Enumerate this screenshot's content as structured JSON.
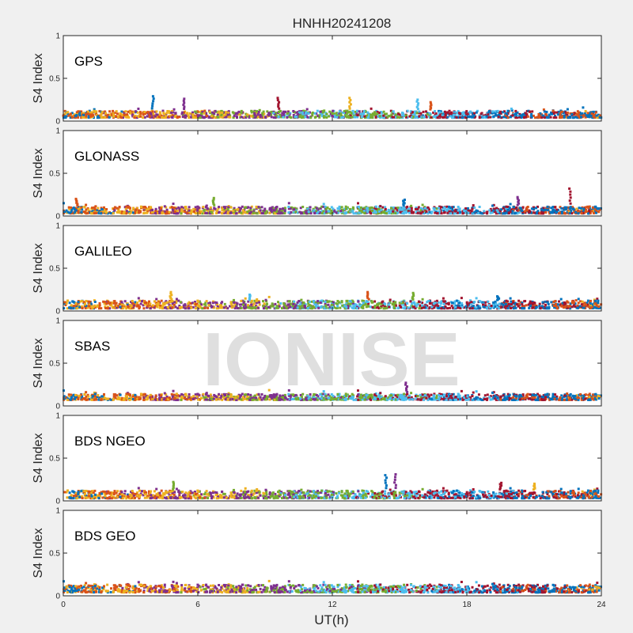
{
  "figure": {
    "title": "HNHH20241208",
    "xlabel": "UT(h)",
    "watermark": "IONISE"
  },
  "chart_data": [
    {
      "type": "scatter",
      "panel_label": "GPS",
      "ylabel": "S4 Index",
      "xlim": [
        0,
        24
      ],
      "ylim": [
        0,
        1
      ],
      "yticks": [
        "0",
        "0.5",
        "1"
      ],
      "baseline_range": [
        0.04,
        0.12
      ],
      "peaks": [
        [
          4.0,
          0.29
        ],
        [
          5.4,
          0.26
        ],
        [
          9.6,
          0.27
        ],
        [
          12.8,
          0.27
        ],
        [
          15.8,
          0.25
        ],
        [
          16.4,
          0.22
        ]
      ]
    },
    {
      "type": "scatter",
      "panel_label": "GLONASS",
      "ylabel": "S4 Index",
      "xlim": [
        0,
        24
      ],
      "ylim": [
        0,
        1
      ],
      "yticks": [
        "0",
        "0.5",
        "1"
      ],
      "baseline_range": [
        0.03,
        0.11
      ],
      "peaks": [
        [
          0.6,
          0.2
        ],
        [
          6.7,
          0.21
        ],
        [
          15.2,
          0.19
        ],
        [
          20.3,
          0.22
        ],
        [
          22.6,
          0.32
        ]
      ]
    },
    {
      "type": "scatter",
      "panel_label": "GALILEO",
      "ylabel": "S4 Index",
      "xlim": [
        0,
        24
      ],
      "ylim": [
        0,
        1
      ],
      "yticks": [
        "0",
        "0.5",
        "1"
      ],
      "baseline_range": [
        0.03,
        0.12
      ],
      "peaks": [
        [
          4.8,
          0.22
        ],
        [
          8.3,
          0.19
        ],
        [
          13.6,
          0.22
        ],
        [
          15.6,
          0.21
        ],
        [
          19.4,
          0.17
        ]
      ]
    },
    {
      "type": "scatter",
      "panel_label": "SBAS",
      "ylabel": "S4 Index",
      "xlim": [
        0,
        24
      ],
      "ylim": [
        0,
        1
      ],
      "yticks": [
        "0",
        "0.5",
        "1"
      ],
      "baseline_range": [
        0.07,
        0.14
      ],
      "peaks": [
        [
          15.3,
          0.27
        ]
      ]
    },
    {
      "type": "scatter",
      "panel_label": "BDS NGEO",
      "ylabel": "S4 Index",
      "xlim": [
        0,
        24
      ],
      "ylim": [
        0,
        1
      ],
      "yticks": [
        "0",
        "0.5",
        "1"
      ],
      "baseline_range": [
        0.03,
        0.12
      ],
      "peaks": [
        [
          4.9,
          0.22
        ],
        [
          14.4,
          0.3
        ],
        [
          14.8,
          0.31
        ],
        [
          19.5,
          0.21
        ],
        [
          21.0,
          0.2
        ]
      ]
    },
    {
      "type": "scatter",
      "panel_label": "BDS GEO",
      "ylabel": "S4 Index",
      "xlim": [
        0,
        24
      ],
      "ylim": [
        0,
        1
      ],
      "yticks": [
        "0",
        "0.5",
        "1"
      ],
      "baseline_range": [
        0.04,
        0.13
      ],
      "peaks": []
    }
  ],
  "xaxis": {
    "ticks": [
      0,
      6,
      12,
      18,
      24
    ],
    "tick_labels": [
      "0",
      "6",
      "12",
      "18",
      "24"
    ]
  },
  "colors": {
    "series": [
      "#0072BD",
      "#D95319",
      "#EDB120",
      "#7E2F8E",
      "#77AC30",
      "#4DBEEE",
      "#A2142F"
    ],
    "background": "#f0f0f0",
    "axes_bg": "#ffffff",
    "watermark": "#d6d6d6"
  }
}
